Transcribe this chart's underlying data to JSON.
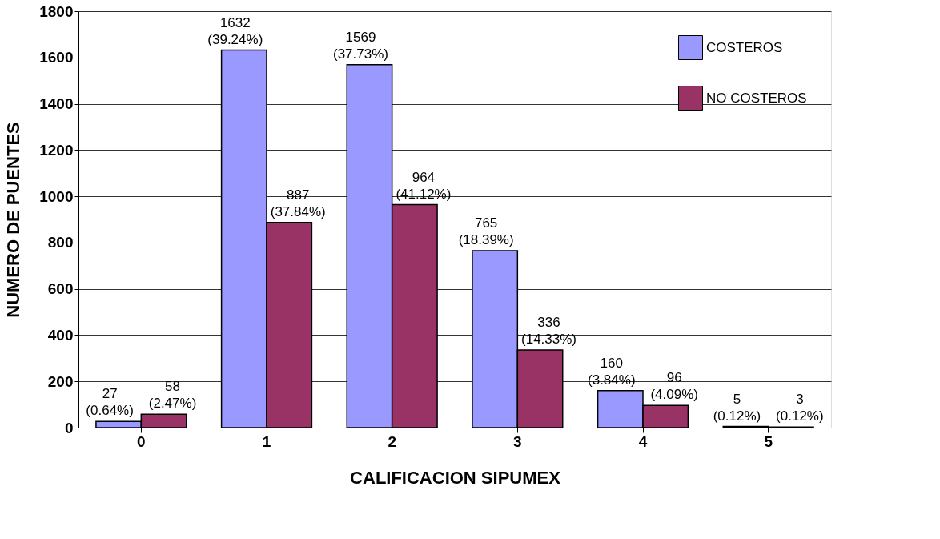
{
  "chart_data": {
    "type": "bar",
    "xlabel": "CALIFICACION  SIPUMEX",
    "ylabel": "NUMERO  DE  PUENTES",
    "categories": [
      "0",
      "1",
      "2",
      "3",
      "4",
      "5"
    ],
    "series": [
      {
        "name": "COSTEROS",
        "color": "#9999ff",
        "values": [
          27,
          1632,
          1569,
          765,
          160,
          5
        ],
        "value_labels": [
          "27 (0.64%)",
          "1632 (39.24%)",
          "1569 (37.73%)",
          "765 (18.39%)",
          "160 (3.84%)",
          "5 (0.12%)"
        ]
      },
      {
        "name": "NO COSTEROS",
        "color": "#993366",
        "values": [
          58,
          887,
          964,
          336,
          96,
          3
        ],
        "value_labels": [
          "58 (2.47%)",
          "887 (37.84%)",
          "964 (41.12%)",
          "336 (14.33%)",
          "96 (4.09%)",
          "3 (0.12%)"
        ]
      }
    ],
    "ylim": [
      0,
      1800
    ],
    "yticks": [
      0,
      200,
      400,
      600,
      800,
      1000,
      1200,
      1400,
      1600,
      1800
    ],
    "grid": "y",
    "legend": "top right"
  }
}
